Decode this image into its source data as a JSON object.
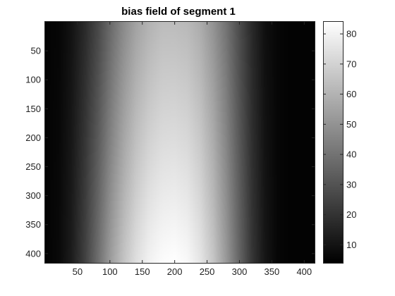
{
  "chart_data": {
    "type": "heatmap",
    "title": "bias field of segment 1",
    "xlabel": "",
    "ylabel": "",
    "colormap": "gray",
    "xlim": [
      0,
      416
    ],
    "ylim": [
      416,
      0
    ],
    "x_ticks": [
      50,
      100,
      150,
      200,
      250,
      300,
      350,
      400
    ],
    "y_ticks": [
      50,
      100,
      150,
      200,
      250,
      300,
      350,
      400
    ],
    "colorbar": {
      "range": [
        4,
        84
      ],
      "ticks": [
        10,
        20,
        30,
        40,
        50,
        60,
        70,
        80
      ]
    },
    "field_profile": {
      "x_columns": [
        0,
        20,
        40,
        60,
        80,
        100,
        120,
        140,
        160,
        180,
        200,
        220,
        240,
        260,
        280,
        300,
        320,
        340,
        360,
        380,
        400,
        416
      ],
      "values_top_row": [
        5,
        6,
        10,
        17,
        26,
        37,
        47,
        55,
        60,
        63,
        63,
        62,
        58,
        50,
        40,
        28,
        17,
        9,
        6,
        5,
        5,
        5
      ],
      "values_bottom_row": [
        5,
        7,
        13,
        24,
        38,
        53,
        65,
        74,
        80,
        83,
        84,
        82,
        76,
        66,
        52,
        36,
        21,
        11,
        6,
        5,
        5,
        5
      ]
    }
  }
}
